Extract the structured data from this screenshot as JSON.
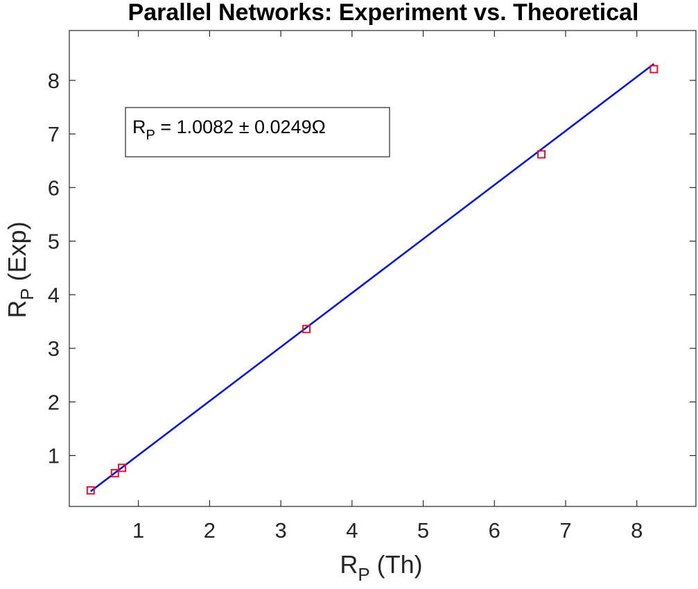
{
  "chart_data": {
    "type": "scatter",
    "title": "Parallel Networks: Experiment vs. Theoretical",
    "xlabel": {
      "main": "R",
      "sub": "P",
      "rest": " (Th)"
    },
    "ylabel": {
      "main": "R",
      "sub": "P",
      "rest": " (Exp)"
    },
    "xlim": [
      0.03,
      8.83
    ],
    "ylim": [
      0.05,
      8.93
    ],
    "xticks": [
      1,
      2,
      3,
      4,
      5,
      6,
      7,
      8
    ],
    "yticks": [
      1,
      2,
      3,
      4,
      5,
      6,
      7,
      8
    ],
    "grid": false,
    "series": [
      {
        "kind": "markers",
        "marker": "square",
        "color": "#e8112d",
        "x": [
          0.33,
          0.67,
          0.77,
          3.36,
          6.66,
          8.24
        ],
        "y": [
          0.35,
          0.67,
          0.77,
          3.36,
          6.62,
          8.21
        ]
      },
      {
        "kind": "fit-line",
        "color": "#0a17d6",
        "slope": 1.0082,
        "x": [
          0.33,
          8.24
        ]
      }
    ],
    "annotation": {
      "main": "R",
      "sub": "P",
      "rest": " = 1.0082 ± 0.0249Ω",
      "placement": "upper-left"
    }
  }
}
